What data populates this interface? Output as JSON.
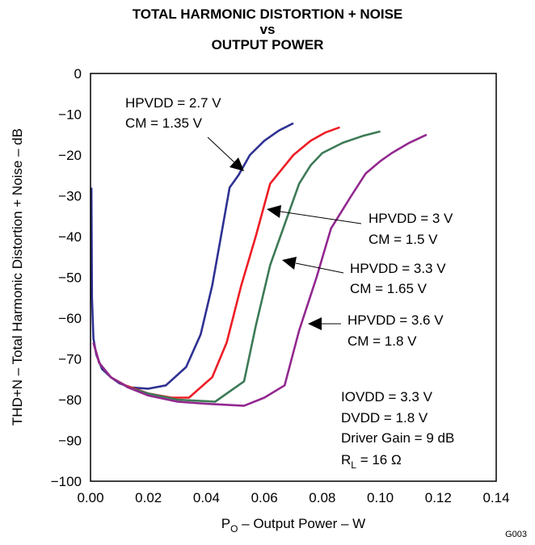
{
  "chart_data": {
    "type": "line",
    "title_lines": [
      "TOTAL HARMONIC DISTORTION + NOISE",
      "vs",
      "OUTPUT POWER"
    ],
    "xlabel": {
      "main": "P",
      "sub": "O",
      "rest": " – Output Power – W"
    },
    "ylabel": "THD+N – Total Harmonic Distortion + Noise – dB",
    "xlim": [
      0,
      0.14
    ],
    "ylim": [
      -100,
      0
    ],
    "xticks": [
      "0.00",
      "0.02",
      "0.04",
      "0.06",
      "0.08",
      "0.10",
      "0.12",
      "0.14"
    ],
    "yticks": [
      "0",
      "−10",
      "−20",
      "−30",
      "−40",
      "−50",
      "−60",
      "−70",
      "−80",
      "−90",
      "−100"
    ],
    "grid": false,
    "series": [
      {
        "name": "HPVDD = 2.7 V, CM = 1.35 V",
        "color": "#2e3192",
        "points": [
          [
            0.0003,
            -28
          ],
          [
            0.0005,
            -55
          ],
          [
            0.001,
            -65
          ],
          [
            0.002,
            -69
          ],
          [
            0.004,
            -72.5
          ],
          [
            0.007,
            -74.5
          ],
          [
            0.01,
            -76
          ],
          [
            0.014,
            -77
          ],
          [
            0.02,
            -77.3
          ],
          [
            0.026,
            -76.5
          ],
          [
            0.033,
            -72
          ],
          [
            0.038,
            -64
          ],
          [
            0.042,
            -52
          ],
          [
            0.045,
            -40
          ],
          [
            0.048,
            -28
          ],
          [
            0.051,
            -25
          ],
          [
            0.055,
            -20
          ],
          [
            0.06,
            -16.5
          ],
          [
            0.065,
            -14
          ],
          [
            0.07,
            -12.2
          ]
        ]
      },
      {
        "name": "HPVDD = 3 V, CM = 1.5 V",
        "color": "#ed1c24",
        "points": [
          [
            0.001,
            -66
          ],
          [
            0.003,
            -71
          ],
          [
            0.007,
            -74.5
          ],
          [
            0.012,
            -76.5
          ],
          [
            0.02,
            -78.5
          ],
          [
            0.028,
            -79.5
          ],
          [
            0.034,
            -79.5
          ],
          [
            0.042,
            -74.5
          ],
          [
            0.047,
            -66
          ],
          [
            0.052,
            -52
          ],
          [
            0.057,
            -40
          ],
          [
            0.062,
            -27
          ],
          [
            0.066,
            -23.5
          ],
          [
            0.07,
            -20
          ],
          [
            0.076,
            -16.5
          ],
          [
            0.081,
            -14.5
          ],
          [
            0.086,
            -13.2
          ]
        ]
      },
      {
        "name": "HPVDD = 3.3 V, CM = 1.65 V",
        "color": "#3c7a56",
        "points": [
          [
            0.001,
            -66
          ],
          [
            0.003,
            -71
          ],
          [
            0.007,
            -74.5
          ],
          [
            0.013,
            -77
          ],
          [
            0.02,
            -78.5
          ],
          [
            0.03,
            -80
          ],
          [
            0.043,
            -80.5
          ],
          [
            0.053,
            -75.5
          ],
          [
            0.057,
            -62
          ],
          [
            0.062,
            -47
          ],
          [
            0.067,
            -37
          ],
          [
            0.072,
            -27
          ],
          [
            0.076,
            -22.5
          ],
          [
            0.08,
            -19.5
          ],
          [
            0.087,
            -17
          ],
          [
            0.094,
            -15.3
          ],
          [
            0.1,
            -14.2
          ]
        ]
      },
      {
        "name": "HPVDD = 3.6 V, CM = 1.8 V",
        "color": "#92278f",
        "points": [
          [
            0.001,
            -66
          ],
          [
            0.003,
            -71
          ],
          [
            0.007,
            -74.5
          ],
          [
            0.013,
            -77
          ],
          [
            0.02,
            -79
          ],
          [
            0.03,
            -80.5
          ],
          [
            0.04,
            -81
          ],
          [
            0.053,
            -81.5
          ],
          [
            0.06,
            -79.5
          ],
          [
            0.067,
            -76.5
          ],
          [
            0.072,
            -63
          ],
          [
            0.078,
            -50
          ],
          [
            0.083,
            -38
          ],
          [
            0.09,
            -30
          ],
          [
            0.095,
            -24.5
          ],
          [
            0.1,
            -21.5
          ],
          [
            0.104,
            -19.5
          ],
          [
            0.11,
            -17
          ],
          [
            0.116,
            -15
          ]
        ]
      }
    ],
    "annotations": [
      {
        "lines": [
          "HPVDD = 2.7 V",
          "CM = 1.35 V"
        ]
      },
      {
        "lines": [
          "HPVDD = 3 V",
          "CM = 1.5 V"
        ]
      },
      {
        "lines": [
          "HPVDD = 3.3 V",
          "CM = 1.65 V"
        ]
      },
      {
        "lines": [
          "HPVDD = 3.6 V",
          "CM = 1.8 V"
        ]
      }
    ],
    "conditions": {
      "iovdd": "IOVDD = 3.3 V",
      "dvdd": "DVDD = 1.8 V",
      "gain": "Driver Gain = 9 dB",
      "rl_main": "R",
      "rl_sub": "L",
      "rl_rest": "  = 16 Ω"
    },
    "figure_id": "G003"
  }
}
